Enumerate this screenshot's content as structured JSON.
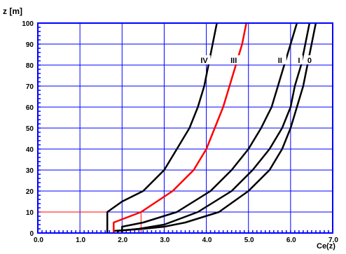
{
  "chart_data": {
    "type": "line",
    "ylabel": "z [m]",
    "xlabel": "Ce(z)",
    "xlim": [
      0,
      7
    ],
    "ylim": [
      0,
      100
    ],
    "x_ticks": [
      "0.0",
      "1.0",
      "2.0",
      "3.0",
      "4.0",
      "5.0",
      "6.0",
      "7.0"
    ],
    "y_ticks": [
      "0",
      "10",
      "20",
      "30",
      "40",
      "50",
      "60",
      "70",
      "80",
      "90",
      "100"
    ],
    "grid": true,
    "colors": {
      "frame": "#0000ff",
      "grid": "#0000ff",
      "curve": "#000000",
      "curve_highlight": "#ff0000",
      "reference_line": "#ff0000"
    },
    "series": [
      {
        "name": "0",
        "color": "#000000",
        "points": [
          [
            1.8,
            0
          ],
          [
            1.8,
            1
          ],
          [
            2.5,
            2
          ],
          [
            3.0,
            3
          ],
          [
            3.5,
            5
          ],
          [
            4.3,
            10
          ],
          [
            5.0,
            20
          ],
          [
            5.5,
            30
          ],
          [
            5.8,
            40
          ],
          [
            6.0,
            50
          ],
          [
            6.15,
            60
          ],
          [
            6.3,
            70
          ],
          [
            6.4,
            80
          ],
          [
            6.5,
            90
          ],
          [
            6.6,
            100
          ]
        ]
      },
      {
        "name": "I",
        "color": "#000000",
        "points": [
          [
            1.9,
            0
          ],
          [
            1.9,
            1
          ],
          [
            2.4,
            2
          ],
          [
            3.0,
            4
          ],
          [
            3.8,
            10
          ],
          [
            4.6,
            20
          ],
          [
            5.1,
            30
          ],
          [
            5.5,
            40
          ],
          [
            5.8,
            50
          ],
          [
            6.0,
            60
          ],
          [
            6.1,
            70
          ],
          [
            6.25,
            80
          ],
          [
            6.35,
            90
          ],
          [
            6.45,
            100
          ]
        ]
      },
      {
        "name": "II",
        "color": "#000000",
        "points": [
          [
            2.0,
            0
          ],
          [
            2.0,
            3
          ],
          [
            2.5,
            5
          ],
          [
            3.3,
            10
          ],
          [
            4.1,
            20
          ],
          [
            4.6,
            30
          ],
          [
            5.0,
            40
          ],
          [
            5.3,
            50
          ],
          [
            5.55,
            60
          ],
          [
            5.7,
            70
          ],
          [
            5.85,
            80
          ],
          [
            6.0,
            90
          ],
          [
            6.15,
            100
          ]
        ]
      },
      {
        "name": "III",
        "color": "#ff0000",
        "points": [
          [
            1.8,
            0
          ],
          [
            1.8,
            5
          ],
          [
            2.45,
            10
          ],
          [
            3.2,
            20
          ],
          [
            3.7,
            30
          ],
          [
            4.0,
            40
          ],
          [
            4.2,
            50
          ],
          [
            4.4,
            60
          ],
          [
            4.55,
            70
          ],
          [
            4.7,
            80
          ],
          [
            4.85,
            90
          ],
          [
            4.95,
            100
          ]
        ]
      },
      {
        "name": "IV",
        "color": "#000000",
        "points": [
          [
            1.65,
            0
          ],
          [
            1.65,
            10
          ],
          [
            2.0,
            15
          ],
          [
            2.5,
            20
          ],
          [
            3.0,
            30
          ],
          [
            3.3,
            40
          ],
          [
            3.6,
            50
          ],
          [
            3.8,
            60
          ],
          [
            3.95,
            70
          ],
          [
            4.05,
            80
          ],
          [
            4.15,
            90
          ],
          [
            4.25,
            100
          ]
        ]
      }
    ],
    "reference_lines": [
      {
        "axis": "y",
        "value": 10,
        "from": 0,
        "to": 1.65
      },
      {
        "axis": "x",
        "value": 2.45,
        "from": 0,
        "to": 10
      }
    ],
    "curve_labels": [
      {
        "text": "IV",
        "x": 3.95,
        "y": 82
      },
      {
        "text": "III",
        "x": 4.65,
        "y": 82
      },
      {
        "text": "II",
        "x": 5.75,
        "y": 82
      },
      {
        "text": "I",
        "x": 6.2,
        "y": 82
      },
      {
        "text": "0",
        "x": 6.45,
        "y": 82
      }
    ]
  }
}
